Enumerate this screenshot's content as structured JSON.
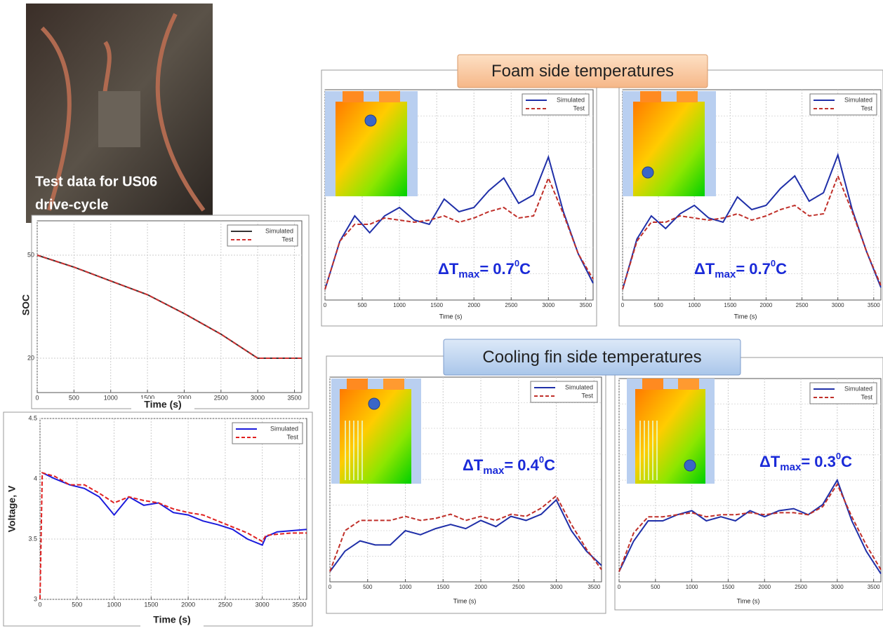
{
  "photo_caption": [
    "Test data for US06",
    "drive-cycle"
  ],
  "section_labels": [
    "Foam side temperatures",
    "Cooling fin side temperatures"
  ],
  "chart_data": [
    {
      "type": "line",
      "ylabel": "SOC",
      "xlabel": "Time (s)",
      "x": [
        0,
        500,
        1000,
        1500,
        2000,
        2500,
        3000,
        3600
      ],
      "series": [
        {
          "name": "Simulated",
          "color": "#333333",
          "values": [
            50,
            46.5,
            42.5,
            38.5,
            33,
            27,
            20,
            20
          ]
        },
        {
          "name": "Test",
          "color": "#d03030",
          "dash": true,
          "values": [
            50,
            46.5,
            42.5,
            38.5,
            33,
            27,
            20,
            20
          ]
        }
      ],
      "xlim": [
        0,
        3600
      ],
      "xticks": [
        0,
        500,
        1000,
        1500,
        2000,
        2500,
        3000,
        3500
      ],
      "ylim": [
        10,
        60
      ],
      "yticks": [
        20,
        50
      ],
      "grid": true,
      "legend": "upper-right"
    },
    {
      "type": "line",
      "ylabel": "Voltage, V",
      "xlabel": "Time (s)",
      "x": [
        0,
        30,
        200,
        400,
        600,
        800,
        1000,
        1200,
        1400,
        1600,
        1800,
        2000,
        2200,
        2400,
        2600,
        2800,
        3000,
        3050,
        3200,
        3400,
        3600
      ],
      "series": [
        {
          "name": "Simulated",
          "color": "#1a1adc",
          "values": [
            null,
            4.05,
            4.0,
            3.95,
            3.92,
            3.85,
            3.7,
            3.85,
            3.78,
            3.8,
            3.72,
            3.7,
            3.65,
            3.62,
            3.58,
            3.5,
            3.45,
            3.52,
            3.56,
            3.57,
            3.58
          ]
        },
        {
          "name": "Test",
          "color": "#e02020",
          "dash": true,
          "values": [
            3.0,
            4.05,
            4.02,
            3.95,
            3.95,
            3.88,
            3.8,
            3.85,
            3.82,
            3.8,
            3.75,
            3.72,
            3.7,
            3.65,
            3.6,
            3.55,
            3.48,
            3.53,
            3.54,
            3.55,
            3.55
          ]
        }
      ],
      "xlim": [
        0,
        3600
      ],
      "xticks": [
        0,
        500,
        1000,
        1500,
        2000,
        2500,
        3000,
        3500
      ],
      "ylim": [
        3,
        4.5
      ],
      "yticks": [
        3,
        3.5,
        4,
        4.5
      ],
      "grid": true,
      "legend": "upper-right"
    },
    {
      "type": "line",
      "xlabel": "Time (s)",
      "annotation": {
        "text": "ΔT",
        "sub": "max",
        "value": "= 0.7",
        "sup": "0",
        "unit": "C"
      },
      "x": [
        0,
        200,
        400,
        600,
        800,
        1000,
        1200,
        1400,
        1600,
        1800,
        2000,
        2200,
        2400,
        2600,
        2800,
        3000,
        3200,
        3400,
        3600
      ],
      "series": [
        {
          "name": "Simulated",
          "color": "#1f2fa8",
          "values": [
            0.5,
            2.8,
            4.0,
            3.2,
            4.0,
            4.4,
            3.8,
            3.6,
            4.8,
            4.2,
            4.4,
            5.2,
            5.8,
            4.6,
            5.0,
            6.8,
            4.2,
            2.2,
            0.8
          ]
        },
        {
          "name": "Test",
          "color": "#c0302a",
          "dash": true,
          "values": [
            0.5,
            2.8,
            3.6,
            3.6,
            3.9,
            3.8,
            3.7,
            3.8,
            4.0,
            3.7,
            3.9,
            4.2,
            4.4,
            3.9,
            4.0,
            5.8,
            4.1,
            2.2,
            1.0
          ]
        }
      ],
      "xlim": [
        0,
        3600
      ],
      "xticks": [
        0,
        500,
        1000,
        1500,
        2000,
        2500,
        3000,
        3500
      ],
      "ylim": [
        0,
        10
      ],
      "grid": true,
      "legend": "upper-right"
    },
    {
      "type": "line",
      "xlabel": "Time (s)",
      "annotation": {
        "text": "ΔT",
        "sub": "max",
        "value": "= 0.7",
        "sup": "0",
        "unit": "C"
      },
      "x": [
        0,
        200,
        400,
        600,
        800,
        1000,
        1200,
        1400,
        1600,
        1800,
        2000,
        2200,
        2400,
        2600,
        2800,
        3000,
        3200,
        3400,
        3600
      ],
      "series": [
        {
          "name": "Simulated",
          "color": "#1f2fa8",
          "values": [
            0.5,
            2.9,
            4.0,
            3.4,
            4.1,
            4.5,
            3.9,
            3.7,
            4.9,
            4.3,
            4.5,
            5.3,
            5.9,
            4.7,
            5.1,
            6.9,
            4.3,
            2.3,
            0.6
          ]
        },
        {
          "name": "Test",
          "color": "#c0302a",
          "dash": true,
          "values": [
            0.5,
            2.8,
            3.7,
            3.7,
            4.0,
            3.9,
            3.8,
            3.9,
            4.1,
            3.8,
            4.0,
            4.3,
            4.5,
            4.0,
            4.1,
            5.9,
            4.2,
            2.3,
            0.7
          ]
        }
      ],
      "xlim": [
        0,
        3600
      ],
      "xticks": [
        0,
        500,
        1000,
        1500,
        2000,
        2500,
        3000,
        3500
      ],
      "ylim": [
        0,
        10
      ],
      "grid": true,
      "legend": "upper-right"
    },
    {
      "type": "line",
      "xlabel": "Time (s)",
      "annotation": {
        "text": "ΔT",
        "sub": "max",
        "value": "= 0.4",
        "sup": "0",
        "unit": "C"
      },
      "x": [
        0,
        200,
        400,
        600,
        800,
        1000,
        1200,
        1400,
        1600,
        1800,
        2000,
        2200,
        2400,
        2600,
        2800,
        3000,
        3200,
        3400,
        3600
      ],
      "series": [
        {
          "name": "Simulated",
          "color": "#1f2fa8",
          "values": [
            0.5,
            1.5,
            2.0,
            1.8,
            1.8,
            2.5,
            2.3,
            2.6,
            2.8,
            2.6,
            3.0,
            2.7,
            3.2,
            3.0,
            3.3,
            4.0,
            2.5,
            1.5,
            0.8
          ]
        },
        {
          "name": "Test",
          "color": "#c0302a",
          "dash": true,
          "values": [
            0.5,
            2.5,
            3.0,
            3.0,
            3.0,
            3.2,
            3.0,
            3.1,
            3.3,
            3.0,
            3.2,
            3.0,
            3.3,
            3.2,
            3.6,
            4.2,
            2.8,
            1.6,
            0.6
          ]
        }
      ],
      "xlim": [
        0,
        3600
      ],
      "xticks": [
        0,
        500,
        1000,
        1500,
        2000,
        2500,
        3000,
        3500
      ],
      "ylim": [
        0,
        10
      ],
      "grid": true,
      "legend": "upper-right"
    },
    {
      "type": "line",
      "xlabel": "Time (s)",
      "annotation": {
        "text": "ΔT",
        "sub": "max",
        "value": "= 0.3",
        "sup": "0",
        "unit": "C"
      },
      "x": [
        0,
        200,
        400,
        600,
        800,
        1000,
        1200,
        1400,
        1600,
        1800,
        2000,
        2200,
        2400,
        2600,
        2800,
        3000,
        3200,
        3400,
        3600
      ],
      "series": [
        {
          "name": "Simulated",
          "color": "#1f2fa8",
          "values": [
            0.5,
            2.0,
            3.0,
            3.0,
            3.3,
            3.5,
            3.0,
            3.2,
            3.0,
            3.5,
            3.2,
            3.5,
            3.6,
            3.3,
            3.8,
            5.0,
            3.0,
            1.5,
            0.4
          ]
        },
        {
          "name": "Test",
          "color": "#c0302a",
          "dash": true,
          "values": [
            0.5,
            2.4,
            3.2,
            3.2,
            3.3,
            3.4,
            3.2,
            3.3,
            3.3,
            3.4,
            3.3,
            3.4,
            3.4,
            3.3,
            3.7,
            4.8,
            3.2,
            1.8,
            0.6
          ]
        }
      ],
      "xlim": [
        0,
        3600
      ],
      "xticks": [
        0,
        500,
        1000,
        1500,
        2000,
        2500,
        3000,
        3500
      ],
      "ylim": [
        0,
        10
      ],
      "grid": true,
      "legend": "upper-right"
    }
  ]
}
